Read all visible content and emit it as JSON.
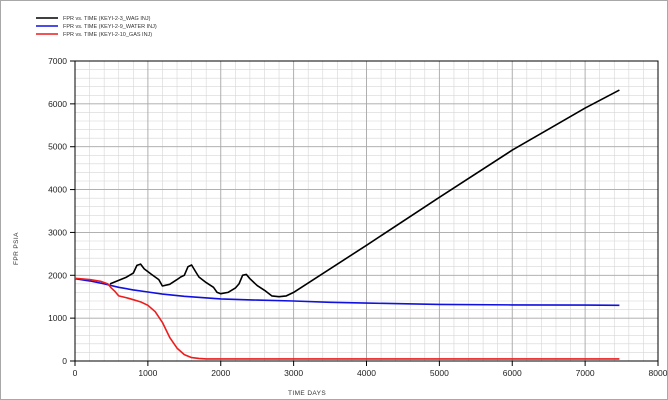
{
  "chart_data": {
    "type": "line",
    "title": "",
    "xlabel": "TIME   DAYS",
    "ylabel": "FPR   PSIA",
    "xlim": [
      0,
      8000
    ],
    "ylim": [
      0,
      7000
    ],
    "xticks": [
      0,
      1000,
      2000,
      3000,
      4000,
      5000,
      6000,
      7000,
      8000
    ],
    "yticks": [
      0,
      1000,
      2000,
      3000,
      4000,
      5000,
      6000,
      7000
    ],
    "grid": true,
    "legend_position": "top-left",
    "series": [
      {
        "name": "FPR vs. TIME (KEYI-2-3_WAG INJ)",
        "color": "#000000",
        "x": [
          480,
          700,
          800,
          850,
          900,
          950,
          1050,
          1150,
          1200,
          1300,
          1400,
          1450,
          1500,
          1550,
          1600,
          1650,
          1700,
          1800,
          1900,
          1950,
          2000,
          2100,
          2200,
          2250,
          2300,
          2350,
          2400,
          2500,
          2600,
          2700,
          2800,
          2900,
          3000,
          4000,
          5000,
          6000,
          7000,
          7470
        ],
        "y": [
          1800,
          1950,
          2050,
          2230,
          2260,
          2150,
          2020,
          1900,
          1750,
          1790,
          1900,
          1960,
          2000,
          2200,
          2240,
          2100,
          1960,
          1830,
          1720,
          1600,
          1570,
          1600,
          1700,
          1800,
          2000,
          2020,
          1920,
          1760,
          1650,
          1520,
          1500,
          1520,
          1600,
          2700,
          3820,
          4920,
          5900,
          6320
        ]
      },
      {
        "name": "FPR vs. TIME (KEYI-2-9_WATER INJ)",
        "color": "#1010e0",
        "x": [
          0,
          200,
          400,
          600,
          800,
          1000,
          1200,
          1500,
          2000,
          2500,
          3000,
          3500,
          4000,
          5000,
          6000,
          7000,
          7470
        ],
        "y": [
          1920,
          1870,
          1800,
          1720,
          1660,
          1610,
          1560,
          1510,
          1450,
          1420,
          1400,
          1370,
          1350,
          1320,
          1310,
          1305,
          1300
        ]
      },
      {
        "name": "FPR vs. TIME (KEYI-2-10_GAS INJ)",
        "color": "#ee1c1c",
        "x": [
          0,
          200,
          350,
          450,
          500,
          550,
          600,
          700,
          800,
          900,
          1000,
          1100,
          1200,
          1300,
          1400,
          1500,
          1600,
          1700,
          1800,
          2000,
          2500,
          3000,
          4000,
          5000,
          6000,
          7000,
          7470
        ],
        "y": [
          1930,
          1900,
          1860,
          1800,
          1700,
          1620,
          1520,
          1480,
          1430,
          1380,
          1300,
          1150,
          900,
          550,
          300,
          150,
          80,
          60,
          50,
          50,
          50,
          50,
          50,
          50,
          50,
          50,
          50
        ]
      }
    ]
  }
}
